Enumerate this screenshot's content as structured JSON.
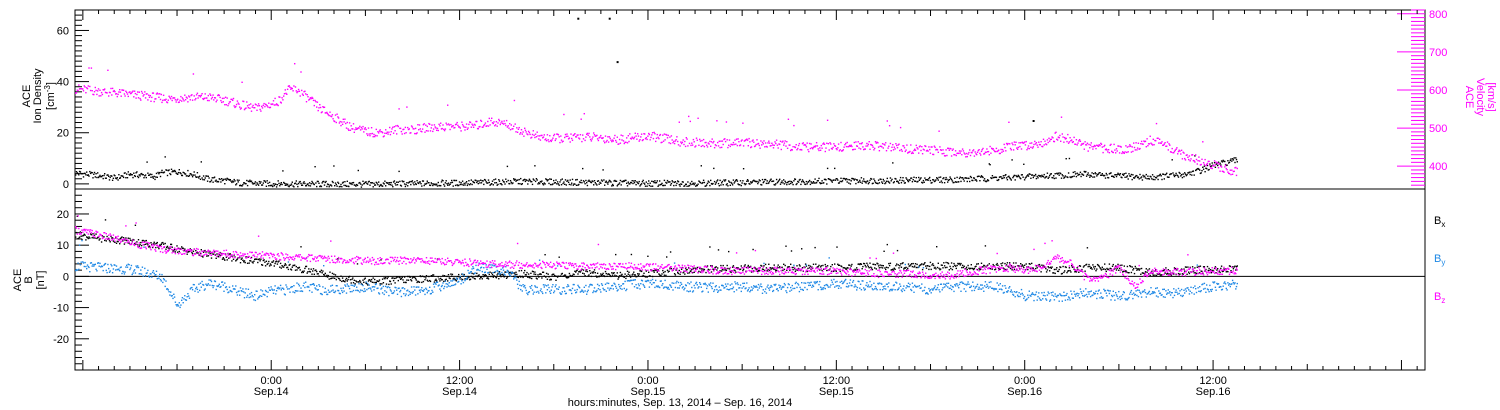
{
  "figure": {
    "x_axis_title": "hours:minutes, Sep. 13, 2014 – Sep. 16, 2014"
  },
  "chart_data": [
    {
      "type": "scatter",
      "panel": "top",
      "x_unit": "hours since 2014-09-13 00:00",
      "xlim": [
        11.5,
        97.5
      ],
      "x_ticks": [
        {
          "hours": 24,
          "time": "0:00",
          "date": "Sep.14"
        },
        {
          "hours": 36,
          "time": "12:00",
          "date": "Sep.14"
        },
        {
          "hours": 48,
          "time": "0:00",
          "date": "Sep.15"
        },
        {
          "hours": 60,
          "time": "12:00",
          "date": "Sep.15"
        },
        {
          "hours": 72,
          "time": "0:00",
          "date": "Sep.16"
        },
        {
          "hours": 84,
          "time": "12:00",
          "date": "Sep.16"
        }
      ],
      "left_axis": {
        "label_line1": "ACE",
        "label_line2": "Ion Density",
        "unit_prefix": "[cm",
        "unit_sup": "-3",
        "unit_suffix": "]",
        "ylim": [
          -2,
          68
        ],
        "ticks": [
          "0",
          "20",
          "40",
          "60"
        ],
        "tick_values": [
          0,
          20,
          40,
          60
        ]
      },
      "right_axis": {
        "label_line1": "ACE",
        "label_line2": "Velocity",
        "unit": "[km/s]",
        "ylim": [
          340,
          810
        ],
        "ticks": [
          "400",
          "500",
          "600",
          "700",
          "800"
        ],
        "tick_values": [
          400,
          500,
          600,
          700,
          800
        ],
        "color": "#ff00ff"
      },
      "series": [
        {
          "name": "Ion Density",
          "color": "#000000",
          "axis": "left",
          "points": [
            [
              11.5,
              4.5
            ],
            [
              13,
              3.5
            ],
            [
              14,
              2.5
            ],
            [
              15,
              4
            ],
            [
              16,
              3.5
            ],
            [
              16.5,
              3
            ],
            [
              17,
              4.5
            ],
            [
              18,
              5
            ],
            [
              19,
              4
            ],
            [
              19.5,
              3
            ],
            [
              20,
              2
            ],
            [
              21,
              1.5
            ],
            [
              22,
              0.6
            ],
            [
              24,
              0.3
            ],
            [
              26,
              0.2
            ],
            [
              30,
              0.1
            ],
            [
              36,
              0.6
            ],
            [
              40,
              1.2
            ],
            [
              44,
              0.8
            ],
            [
              48,
              0.4
            ],
            [
              52,
              0.6
            ],
            [
              56,
              1
            ],
            [
              60,
              1.4
            ],
            [
              64,
              1.6
            ],
            [
              68,
              2
            ],
            [
              70,
              2.5
            ],
            [
              72,
              3
            ],
            [
              74,
              3.6
            ],
            [
              76,
              4
            ],
            [
              78,
              3.3
            ],
            [
              80,
              2.8
            ],
            [
              82,
              3.8
            ],
            [
              83,
              5.2
            ],
            [
              84,
              7.5
            ],
            [
              85.5,
              9.5
            ]
          ]
        },
        {
          "name": "Velocity",
          "color": "#ff00ff",
          "axis": "right",
          "points": [
            [
              11.5,
              605
            ],
            [
              13,
              598
            ],
            [
              14.5,
              592
            ],
            [
              16,
              585
            ],
            [
              17.5,
              578
            ],
            [
              19,
              583
            ],
            [
              20,
              582
            ],
            [
              21,
              575
            ],
            [
              22,
              562
            ],
            [
              23,
              553
            ],
            [
              24,
              565
            ],
            [
              24.5,
              575
            ],
            [
              25,
              600
            ],
            [
              25.5,
              605
            ],
            [
              26,
              590
            ],
            [
              27,
              555
            ],
            [
              28,
              530
            ],
            [
              29,
              505
            ],
            [
              30,
              492
            ],
            [
              31,
              490
            ],
            [
              32,
              498
            ],
            [
              33,
              497
            ],
            [
              34,
              503
            ],
            [
              35,
              506
            ],
            [
              36,
              506
            ],
            [
              37,
              508
            ],
            [
              38,
              519
            ],
            [
              39,
              512
            ],
            [
              40,
              493
            ],
            [
              41,
              478
            ],
            [
              42,
              474
            ],
            [
              44,
              478
            ],
            [
              45,
              476
            ],
            [
              46,
              471
            ],
            [
              48,
              481
            ],
            [
              49,
              474
            ],
            [
              50,
              466
            ],
            [
              52,
              461
            ],
            [
              54,
              463
            ],
            [
              56,
              459
            ],
            [
              58,
              451
            ],
            [
              60,
              452
            ],
            [
              62,
              456
            ],
            [
              64,
              449
            ],
            [
              66,
              443
            ],
            [
              68,
              438
            ],
            [
              70,
              442
            ],
            [
              71,
              452
            ],
            [
              72,
              456
            ],
            [
              73,
              463
            ],
            [
              74,
              480
            ],
            [
              75,
              470
            ],
            [
              76,
              452
            ],
            [
              78,
              446
            ],
            [
              79,
              451
            ],
            [
              80,
              470
            ],
            [
              81,
              455
            ],
            [
              82,
              432
            ],
            [
              83,
              418
            ],
            [
              84,
              405
            ],
            [
              85,
              392
            ],
            [
              85.5,
              388
            ]
          ]
        },
        {
          "name": "Ion Density (outliers)",
          "color": "#000000",
          "axis": "left",
          "points": [
            [
              43.5,
              65
            ],
            [
              45.5,
              65
            ],
            [
              46,
              48
            ],
            [
              72.5,
              25
            ]
          ]
        }
      ]
    },
    {
      "type": "scatter",
      "panel": "bottom",
      "x_unit": "hours since 2014-09-13 00:00",
      "xlim": [
        11.5,
        97.5
      ],
      "left_axis": {
        "label_line1": "ACE",
        "label_line2": "B",
        "unit": "[nT]",
        "ylim": [
          -30,
          28
        ],
        "ticks": [
          "20",
          "10",
          "0",
          "-10",
          "-20"
        ],
        "tick_values": [
          20,
          10,
          0,
          -10,
          -20
        ]
      },
      "zero_line": 0,
      "series": [
        {
          "name_main": "B",
          "name_sub": "x",
          "color": "#000000",
          "points": [
            [
              11.5,
              13.5
            ],
            [
              13,
              12.5
            ],
            [
              15,
              11.5
            ],
            [
              17,
              10
            ],
            [
              19,
              8
            ],
            [
              21,
              6.5
            ],
            [
              23,
              5
            ],
            [
              24,
              4.5
            ],
            [
              26,
              2.5
            ],
            [
              28,
              0
            ],
            [
              30,
              -1.5
            ],
            [
              32,
              -1
            ],
            [
              34,
              -0.5
            ],
            [
              36,
              0
            ],
            [
              38,
              0.5
            ],
            [
              40,
              1
            ],
            [
              42,
              0
            ],
            [
              44,
              1.5
            ],
            [
              46,
              0.5
            ],
            [
              48,
              1.2
            ],
            [
              50,
              2
            ],
            [
              52,
              2.5
            ],
            [
              56,
              3
            ],
            [
              60,
              3
            ],
            [
              64,
              3.5
            ],
            [
              68,
              3.5
            ],
            [
              72,
              3.5
            ],
            [
              74,
              2
            ],
            [
              76,
              3
            ],
            [
              78,
              3
            ],
            [
              80,
              1.5
            ],
            [
              82,
              2
            ],
            [
              84,
              2.5
            ],
            [
              85.5,
              2.5
            ]
          ]
        },
        {
          "name_main": "B",
          "name_sub": "y",
          "color": "#1e88e5",
          "points": [
            [
              11.5,
              3.5
            ],
            [
              13,
              3
            ],
            [
              15,
              2.5
            ],
            [
              16,
              1.5
            ],
            [
              17,
              0
            ],
            [
              18,
              -9
            ],
            [
              19,
              -4
            ],
            [
              20,
              -2
            ],
            [
              21,
              -3
            ],
            [
              22,
              -5
            ],
            [
              23,
              -6
            ],
            [
              24,
              -4.5
            ],
            [
              25,
              -4
            ],
            [
              26,
              -3
            ],
            [
              27,
              -4
            ],
            [
              28,
              -4
            ],
            [
              30,
              -3
            ],
            [
              32,
              -5
            ],
            [
              34,
              -4
            ],
            [
              36,
              -1
            ],
            [
              37,
              3
            ],
            [
              39,
              2
            ],
            [
              40,
              -4
            ],
            [
              42,
              -4
            ],
            [
              44,
              -4
            ],
            [
              46,
              -3
            ],
            [
              48,
              -2
            ],
            [
              50,
              -3
            ],
            [
              52,
              -3.5
            ],
            [
              54,
              -3
            ],
            [
              56,
              -4
            ],
            [
              58,
              -3
            ],
            [
              60,
              -2
            ],
            [
              62,
              -3
            ],
            [
              64,
              -3
            ],
            [
              66,
              -4
            ],
            [
              68,
              -3
            ],
            [
              70,
              -3
            ],
            [
              72,
              -6
            ],
            [
              74,
              -6.5
            ],
            [
              76,
              -5
            ],
            [
              78,
              -6
            ],
            [
              80,
              -5
            ],
            [
              82,
              -5
            ],
            [
              83,
              -4
            ],
            [
              84,
              -3
            ],
            [
              85.5,
              -2.5
            ]
          ]
        },
        {
          "name_main": "B",
          "name_sub": "z",
          "color": "#ff00ff",
          "points": [
            [
              11.5,
              15
            ],
            [
              13,
              13.5
            ],
            [
              15,
              11
            ],
            [
              17,
              9
            ],
            [
              19,
              8
            ],
            [
              21,
              7.5
            ],
            [
              23,
              7
            ],
            [
              25,
              6.5
            ],
            [
              27,
              6
            ],
            [
              29,
              5.5
            ],
            [
              31,
              5
            ],
            [
              33,
              5.5
            ],
            [
              35,
              5
            ],
            [
              37,
              4.5
            ],
            [
              39,
              4
            ],
            [
              41,
              4
            ],
            [
              43,
              3.5
            ],
            [
              45,
              3.5
            ],
            [
              47,
              3.5
            ],
            [
              49,
              3
            ],
            [
              51,
              2.5
            ],
            [
              53,
              2
            ],
            [
              55,
              2
            ],
            [
              57,
              2
            ],
            [
              59,
              2
            ],
            [
              61,
              1.5
            ],
            [
              63,
              1
            ],
            [
              65,
              1
            ],
            [
              67,
              0.5
            ],
            [
              69,
              2
            ],
            [
              71,
              3
            ],
            [
              72,
              2
            ],
            [
              73,
              3
            ],
            [
              74,
              6
            ],
            [
              75,
              4
            ],
            [
              76,
              -1
            ],
            [
              77,
              0
            ],
            [
              78,
              3
            ],
            [
              79,
              -3
            ],
            [
              80,
              2
            ],
            [
              82,
              1.5
            ],
            [
              84,
              2
            ],
            [
              85.5,
              2
            ]
          ]
        }
      ]
    }
  ]
}
